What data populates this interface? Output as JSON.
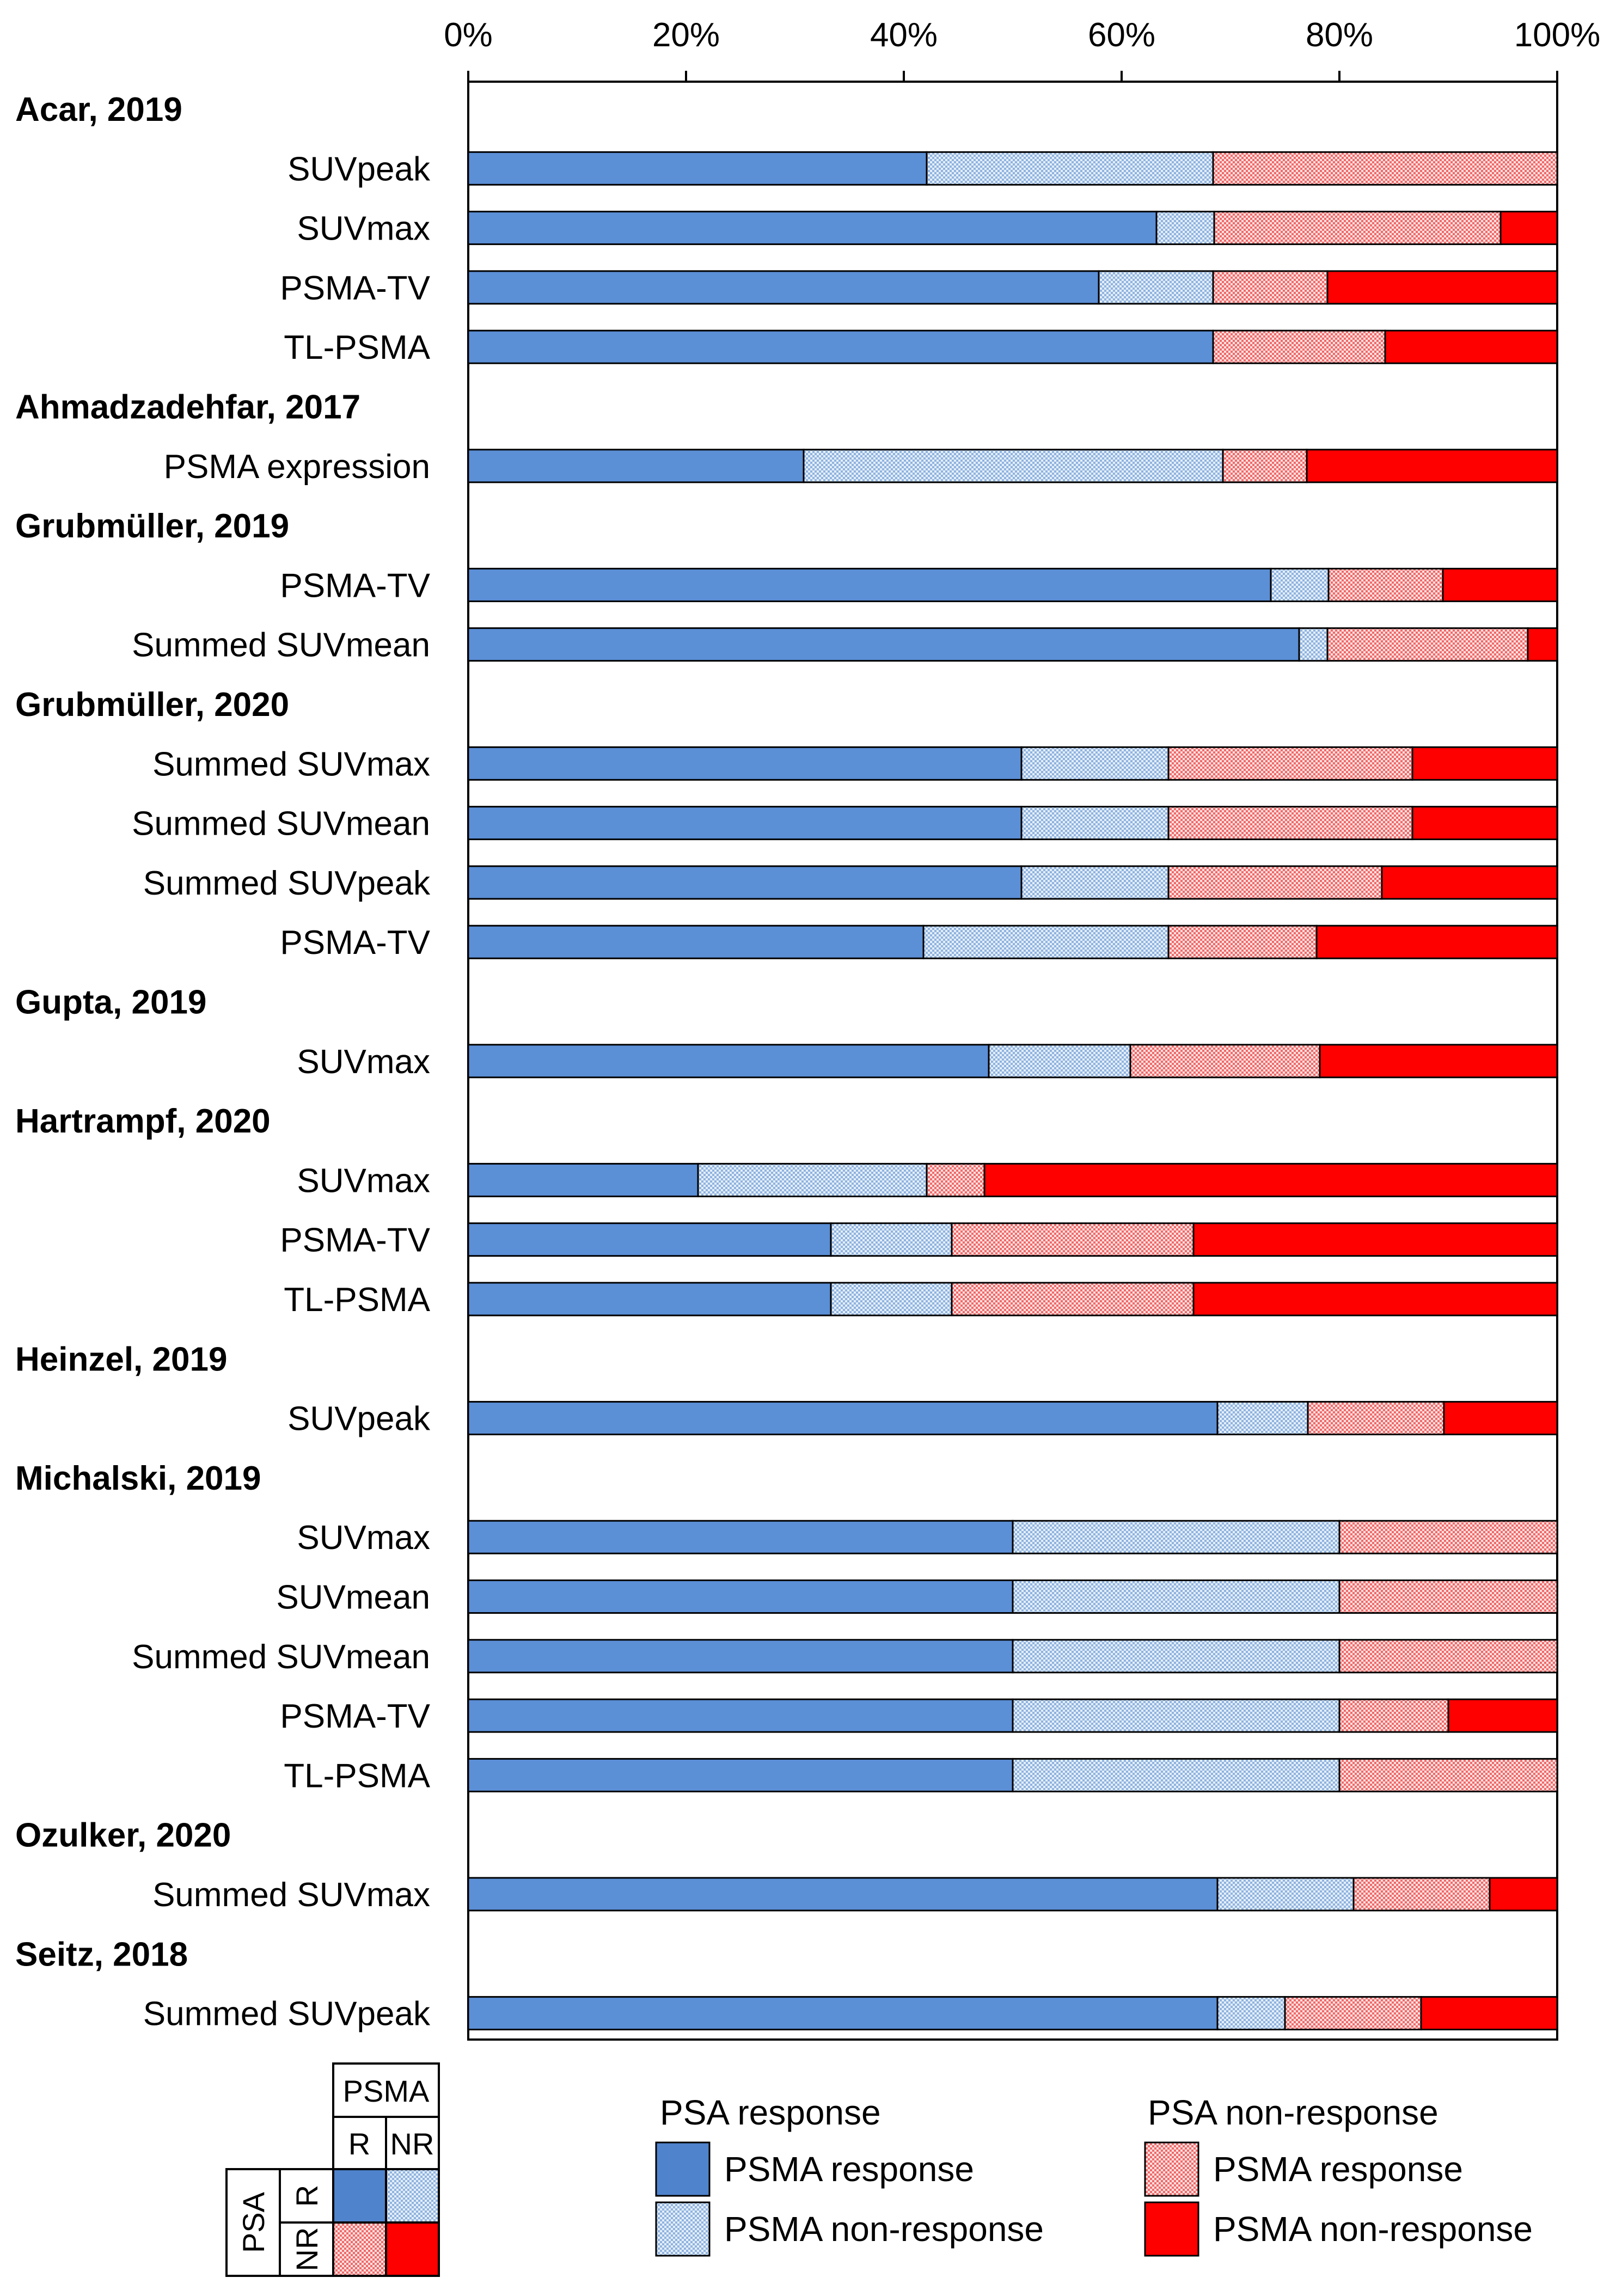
{
  "colors": {
    "psa_r_psma_r": "#5b8fd6",
    "psa_r_psma_nr": "#c6d8ee",
    "psa_nr_psma_r": "#f5aaaa",
    "psa_nr_psma_nr": "#ff0000",
    "outline": "#000000"
  },
  "chart_data": {
    "type": "bar",
    "orientation": "horizontal",
    "stacked": true,
    "xlim": [
      0,
      100
    ],
    "xticks": [
      "0%",
      "20%",
      "40%",
      "60%",
      "80%",
      "100%"
    ],
    "groups": [
      {
        "study": "Acar, 2019",
        "rows": [
          {
            "label": "SUVpeak",
            "values": [
              42.1,
              26.3,
              31.6,
              0
            ]
          },
          {
            "label": "SUVmax",
            "values": [
              63.2,
              5.3,
              26.3,
              5.2
            ]
          },
          {
            "label": "PSMA-TV",
            "values": [
              57.9,
              10.5,
              10.5,
              21.1
            ]
          },
          {
            "label": "TL-PSMA",
            "values": [
              68.4,
              0,
              15.8,
              15.8
            ]
          }
        ]
      },
      {
        "study": "Ahmadzadehfar, 2017",
        "rows": [
          {
            "label": "PSMA expression",
            "values": [
              30.8,
              38.5,
              7.7,
              23.0
            ]
          }
        ]
      },
      {
        "study": "Grubmüller, 2019",
        "rows": [
          {
            "label": "PSMA-TV",
            "values": [
              73.7,
              5.3,
              10.5,
              10.5
            ]
          },
          {
            "label": "Summed SUVmean",
            "values": [
              76.3,
              2.6,
              18.4,
              2.7
            ]
          }
        ]
      },
      {
        "study": "Grubmüller, 2020",
        "rows": [
          {
            "label": "Summed SUVmax",
            "values": [
              50.8,
              13.5,
              22.4,
              13.3
            ]
          },
          {
            "label": "Summed SUVmean",
            "values": [
              50.8,
              13.5,
              22.4,
              13.3
            ]
          },
          {
            "label": "Summed SUVpeak",
            "values": [
              50.8,
              13.5,
              19.6,
              16.1
            ]
          },
          {
            "label": "PSMA-TV",
            "values": [
              41.8,
              22.5,
              13.6,
              22.1
            ]
          }
        ]
      },
      {
        "study": "Gupta, 2019",
        "rows": [
          {
            "label": "SUVmax",
            "values": [
              47.8,
              13.0,
              17.4,
              21.8
            ]
          }
        ]
      },
      {
        "study": "Hartrampf, 2020",
        "rows": [
          {
            "label": "SUVmax",
            "values": [
              21.1,
              21.0,
              5.3,
              52.6
            ]
          },
          {
            "label": "PSMA-TV",
            "values": [
              33.3,
              11.1,
              22.2,
              33.4
            ]
          },
          {
            "label": "TL-PSMA",
            "values": [
              33.3,
              11.1,
              22.2,
              33.4
            ]
          }
        ]
      },
      {
        "study": "Heinzel, 2019",
        "rows": [
          {
            "label": "SUVpeak",
            "values": [
              68.8,
              8.3,
              12.5,
              10.4
            ]
          }
        ]
      },
      {
        "study": "Michalski, 2019",
        "rows": [
          {
            "label": "SUVmax",
            "values": [
              50.0,
              30.0,
              20.0,
              0
            ]
          },
          {
            "label": "SUVmean",
            "values": [
              50.0,
              30.0,
              20.0,
              0
            ]
          },
          {
            "label": "Summed SUVmean",
            "values": [
              50.0,
              30.0,
              20.0,
              0
            ]
          },
          {
            "label": "PSMA-TV",
            "values": [
              50.0,
              30.0,
              10.0,
              10.0
            ]
          },
          {
            "label": "TL-PSMA",
            "values": [
              50.0,
              30.0,
              20.0,
              0
            ]
          }
        ]
      },
      {
        "study": "Ozulker, 2020",
        "rows": [
          {
            "label": "Summed SUVmax",
            "values": [
              68.8,
              12.5,
              12.5,
              6.2
            ]
          }
        ]
      },
      {
        "study": "Seitz, 2018",
        "rows": [
          {
            "label": "Summed SUVpeak",
            "values": [
              68.8,
              6.2,
              12.5,
              12.5
            ]
          }
        ]
      }
    ]
  },
  "legend": {
    "group_psa_response": "PSA response",
    "group_psa_nonresponse": "PSA non-response",
    "item_psma_response_1": "PSMA response",
    "item_psma_nonresponse_1": "PSMA non-response",
    "item_psma_response_2": "PSMA response",
    "item_psma_nonresponse_2": "PSMA non-response"
  },
  "matrix": {
    "psma": "PSMA",
    "psa": "PSA",
    "col_r": "R",
    "col_nr": "NR",
    "row_r": "R",
    "row_nr": "NR"
  }
}
